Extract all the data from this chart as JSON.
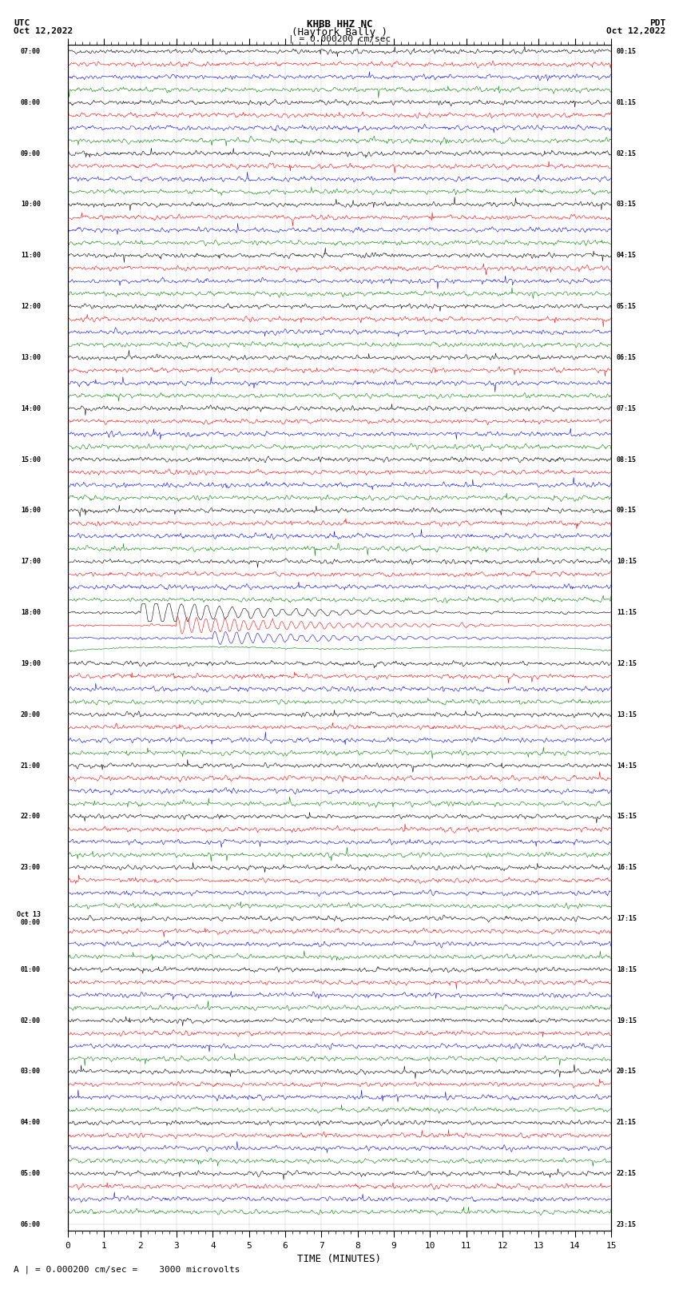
{
  "title_line1": "KHBB HHZ NC",
  "title_line2": "(Hayfork Bally )",
  "title_scale": "| = 0.000200 cm/sec",
  "left_header_line1": "UTC",
  "left_header_line2": "Oct 12,2022",
  "right_header_line1": "PDT",
  "right_header_line2": "Oct 12,2022",
  "xlabel": "TIME (MINUTES)",
  "footer": "A | = 0.000200 cm/sec =    3000 microvolts",
  "bg_color": "#ffffff",
  "trace_colors": [
    "black",
    "red",
    "blue",
    "green"
  ],
  "x_min": 0,
  "x_max": 15,
  "x_ticks": [
    0,
    1,
    2,
    3,
    4,
    5,
    6,
    7,
    8,
    9,
    10,
    11,
    12,
    13,
    14,
    15
  ],
  "utc_labels_left": [
    "07:00",
    "",
    "",
    "",
    "08:00",
    "",
    "",
    "",
    "09:00",
    "",
    "",
    "",
    "10:00",
    "",
    "",
    "",
    "11:00",
    "",
    "",
    "",
    "12:00",
    "",
    "",
    "",
    "13:00",
    "",
    "",
    "",
    "14:00",
    "",
    "",
    "",
    "15:00",
    "",
    "",
    "",
    "16:00",
    "",
    "",
    "",
    "17:00",
    "",
    "",
    "",
    "18:00",
    "",
    "",
    "",
    "19:00",
    "",
    "",
    "",
    "20:00",
    "",
    "",
    "",
    "21:00",
    "",
    "",
    "",
    "22:00",
    "",
    "",
    "",
    "23:00",
    "",
    "",
    "",
    "Oct 13\n00:00",
    "",
    "",
    "",
    "01:00",
    "",
    "",
    "",
    "02:00",
    "",
    "",
    "",
    "03:00",
    "",
    "",
    "",
    "04:00",
    "",
    "",
    "",
    "05:00",
    "",
    "",
    "",
    "06:00",
    "",
    "",
    ""
  ],
  "pdt_labels_right": [
    "00:15",
    "",
    "",
    "",
    "01:15",
    "",
    "",
    "",
    "02:15",
    "",
    "",
    "",
    "03:15",
    "",
    "",
    "",
    "04:15",
    "",
    "",
    "",
    "05:15",
    "",
    "",
    "",
    "06:15",
    "",
    "",
    "",
    "07:15",
    "",
    "",
    "",
    "08:15",
    "",
    "",
    "",
    "09:15",
    "",
    "",
    "",
    "10:15",
    "",
    "",
    "",
    "11:15",
    "",
    "",
    "",
    "12:15",
    "",
    "",
    "",
    "13:15",
    "",
    "",
    "",
    "14:15",
    "",
    "",
    "",
    "15:15",
    "",
    "",
    "",
    "16:15",
    "",
    "",
    "",
    "17:15",
    "",
    "",
    "",
    "18:15",
    "",
    "",
    "",
    "19:15",
    "",
    "",
    "",
    "20:15",
    "",
    "",
    "",
    "21:15",
    "",
    "",
    "",
    "22:15",
    "",
    "",
    "",
    "23:15",
    "",
    "",
    ""
  ],
  "n_traces": 92,
  "noise_amplitude": 0.35,
  "seed": 42
}
